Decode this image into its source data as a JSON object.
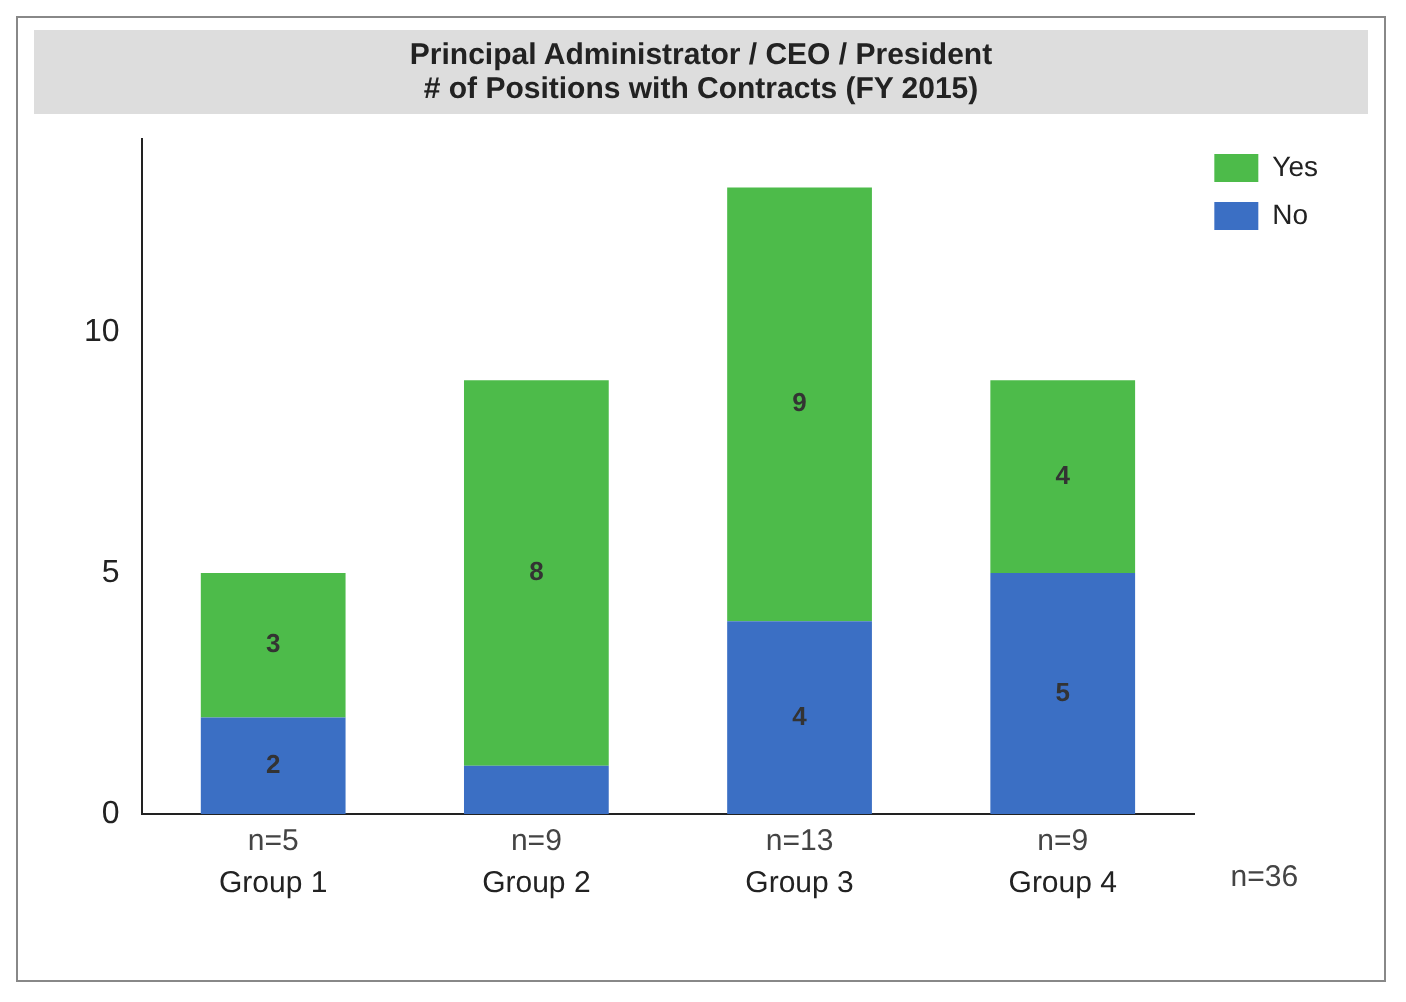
{
  "chart_data": {
    "type": "bar",
    "title": "Principal Administrator / CEO / President",
    "subtitle": "# of Positions with Contracts (FY 2015)",
    "categories": [
      "Group 1",
      "Group 2",
      "Group 3",
      "Group 4"
    ],
    "stacked": true,
    "series": [
      {
        "name": "No",
        "color": "#3b6fc4",
        "values": [
          2,
          1,
          4,
          5
        ],
        "value_labels": [
          "2",
          null,
          "4",
          "5"
        ]
      },
      {
        "name": "Yes",
        "color": "#4dbb4a",
        "values": [
          3,
          8,
          9,
          4
        ],
        "value_labels": [
          "3",
          "8",
          "9",
          "4"
        ]
      }
    ],
    "ylim": [
      0,
      14
    ],
    "yticks": [
      0,
      5,
      10
    ],
    "grid": false,
    "legend": "top right",
    "annotations": [
      "n=5",
      "n=9",
      "n=13",
      "n=9",
      "n=36"
    ]
  }
}
